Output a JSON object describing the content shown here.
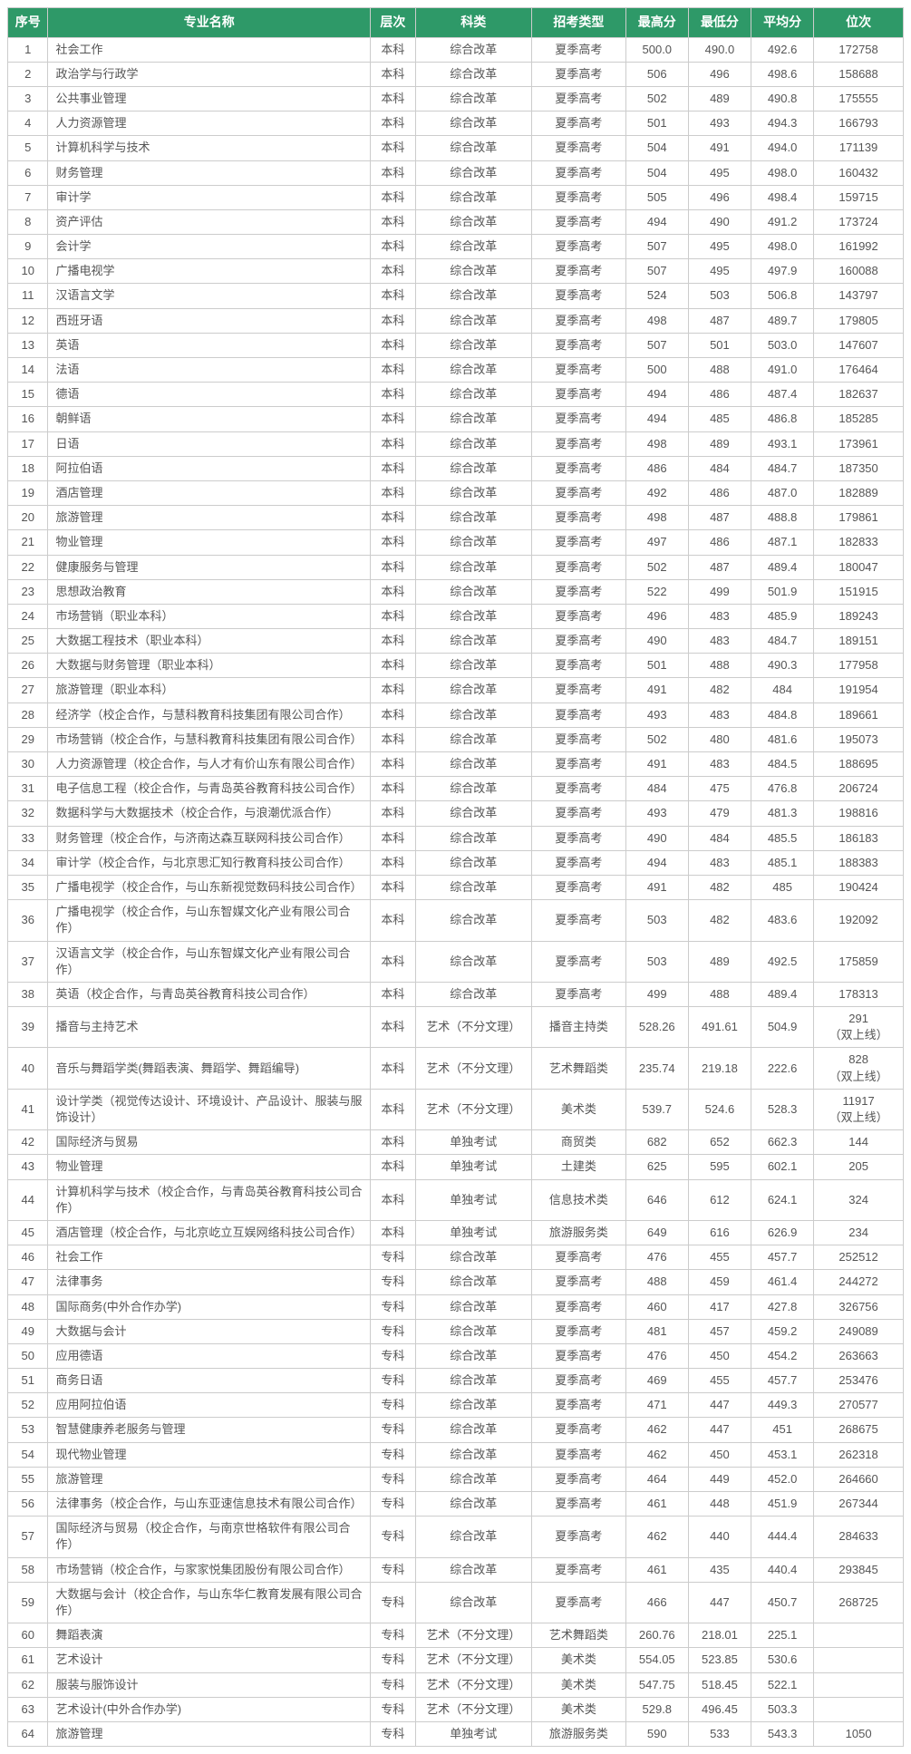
{
  "header_bg": "#2e9968",
  "header_fg": "#ffffff",
  "border_color": "#cccccc",
  "text_color": "#555555",
  "columns": [
    "序号",
    "专业名称",
    "层次",
    "科类",
    "招考类型",
    "最高分",
    "最低分",
    "平均分",
    "位次"
  ],
  "rows": [
    [
      "1",
      "社会工作",
      "本科",
      "综合改革",
      "夏季高考",
      "500.0",
      "490.0",
      "492.6",
      "172758"
    ],
    [
      "2",
      "政治学与行政学",
      "本科",
      "综合改革",
      "夏季高考",
      "506",
      "496",
      "498.6",
      "158688"
    ],
    [
      "3",
      "公共事业管理",
      "本科",
      "综合改革",
      "夏季高考",
      "502",
      "489",
      "490.8",
      "175555"
    ],
    [
      "4",
      "人力资源管理",
      "本科",
      "综合改革",
      "夏季高考",
      "501",
      "493",
      "494.3",
      "166793"
    ],
    [
      "5",
      "计算机科学与技术",
      "本科",
      "综合改革",
      "夏季高考",
      "504",
      "491",
      "494.0",
      "171139"
    ],
    [
      "6",
      "财务管理",
      "本科",
      "综合改革",
      "夏季高考",
      "504",
      "495",
      "498.0",
      "160432"
    ],
    [
      "7",
      "审计学",
      "本科",
      "综合改革",
      "夏季高考",
      "505",
      "496",
      "498.4",
      "159715"
    ],
    [
      "8",
      "资产评估",
      "本科",
      "综合改革",
      "夏季高考",
      "494",
      "490",
      "491.2",
      "173724"
    ],
    [
      "9",
      "会计学",
      "本科",
      "综合改革",
      "夏季高考",
      "507",
      "495",
      "498.0",
      "161992"
    ],
    [
      "10",
      "广播电视学",
      "本科",
      "综合改革",
      "夏季高考",
      "507",
      "495",
      "497.9",
      "160088"
    ],
    [
      "11",
      "汉语言文学",
      "本科",
      "综合改革",
      "夏季高考",
      "524",
      "503",
      "506.8",
      "143797"
    ],
    [
      "12",
      "西班牙语",
      "本科",
      "综合改革",
      "夏季高考",
      "498",
      "487",
      "489.7",
      "179805"
    ],
    [
      "13",
      "英语",
      "本科",
      "综合改革",
      "夏季高考",
      "507",
      "501",
      "503.0",
      "147607"
    ],
    [
      "14",
      "法语",
      "本科",
      "综合改革",
      "夏季高考",
      "500",
      "488",
      "491.0",
      "176464"
    ],
    [
      "15",
      "德语",
      "本科",
      "综合改革",
      "夏季高考",
      "494",
      "486",
      "487.4",
      "182637"
    ],
    [
      "16",
      "朝鲜语",
      "本科",
      "综合改革",
      "夏季高考",
      "494",
      "485",
      "486.8",
      "185285"
    ],
    [
      "17",
      "日语",
      "本科",
      "综合改革",
      "夏季高考",
      "498",
      "489",
      "493.1",
      "173961"
    ],
    [
      "18",
      "阿拉伯语",
      "本科",
      "综合改革",
      "夏季高考",
      "486",
      "484",
      "484.7",
      "187350"
    ],
    [
      "19",
      "酒店管理",
      "本科",
      "综合改革",
      "夏季高考",
      "492",
      "486",
      "487.0",
      "182889"
    ],
    [
      "20",
      "旅游管理",
      "本科",
      "综合改革",
      "夏季高考",
      "498",
      "487",
      "488.8",
      "179861"
    ],
    [
      "21",
      "物业管理",
      "本科",
      "综合改革",
      "夏季高考",
      "497",
      "486",
      "487.1",
      "182833"
    ],
    [
      "22",
      "健康服务与管理",
      "本科",
      "综合改革",
      "夏季高考",
      "502",
      "487",
      "489.4",
      "180047"
    ],
    [
      "23",
      "思想政治教育",
      "本科",
      "综合改革",
      "夏季高考",
      "522",
      "499",
      "501.9",
      "151915"
    ],
    [
      "24",
      "市场营销（职业本科）",
      "本科",
      "综合改革",
      "夏季高考",
      "496",
      "483",
      "485.9",
      "189243"
    ],
    [
      "25",
      "大数据工程技术（职业本科）",
      "本科",
      "综合改革",
      "夏季高考",
      "490",
      "483",
      "484.7",
      "189151"
    ],
    [
      "26",
      "大数据与财务管理（职业本科）",
      "本科",
      "综合改革",
      "夏季高考",
      "501",
      "488",
      "490.3",
      "177958"
    ],
    [
      "27",
      "旅游管理（职业本科）",
      "本科",
      "综合改革",
      "夏季高考",
      "491",
      "482",
      "484",
      "191954"
    ],
    [
      "28",
      "经济学（校企合作，与慧科教育科技集团有限公司合作）",
      "本科",
      "综合改革",
      "夏季高考",
      "493",
      "483",
      "484.8",
      "189661"
    ],
    [
      "29",
      "市场营销（校企合作，与慧科教育科技集团有限公司合作）",
      "本科",
      "综合改革",
      "夏季高考",
      "502",
      "480",
      "481.6",
      "195073"
    ],
    [
      "30",
      "人力资源管理（校企合作，与人才有价山东有限公司合作）",
      "本科",
      "综合改革",
      "夏季高考",
      "491",
      "483",
      "484.5",
      "188695"
    ],
    [
      "31",
      "电子信息工程（校企合作，与青岛英谷教育科技公司合作）",
      "本科",
      "综合改革",
      "夏季高考",
      "484",
      "475",
      "476.8",
      "206724"
    ],
    [
      "32",
      "数据科学与大数据技术（校企合作，与浪潮优派合作）",
      "本科",
      "综合改革",
      "夏季高考",
      "493",
      "479",
      "481.3",
      "198816"
    ],
    [
      "33",
      "财务管理（校企合作，与济南达森互联网科技公司合作）",
      "本科",
      "综合改革",
      "夏季高考",
      "490",
      "484",
      "485.5",
      "186183"
    ],
    [
      "34",
      "审计学（校企合作，与北京思汇知行教育科技公司合作）",
      "本科",
      "综合改革",
      "夏季高考",
      "494",
      "483",
      "485.1",
      "188383"
    ],
    [
      "35",
      "广播电视学（校企合作，与山东新视觉数码科技公司合作）",
      "本科",
      "综合改革",
      "夏季高考",
      "491",
      "482",
      "485",
      "190424"
    ],
    [
      "36",
      "广播电视学（校企合作，与山东智媒文化产业有限公司合作）",
      "本科",
      "综合改革",
      "夏季高考",
      "503",
      "482",
      "483.6",
      "192092"
    ],
    [
      "37",
      "汉语言文学（校企合作，与山东智媒文化产业有限公司合作）",
      "本科",
      "综合改革",
      "夏季高考",
      "503",
      "489",
      "492.5",
      "175859"
    ],
    [
      "38",
      "英语（校企合作，与青岛英谷教育科技公司合作）",
      "本科",
      "综合改革",
      "夏季高考",
      "499",
      "488",
      "489.4",
      "178313"
    ],
    [
      "39",
      "播音与主持艺术",
      "本科",
      "艺术（不分文理）",
      "播音主持类",
      "528.26",
      "491.61",
      "504.9",
      "291\n（双上线）"
    ],
    [
      "40",
      "音乐与舞蹈学类(舞蹈表演、舞蹈学、舞蹈编导)",
      "本科",
      "艺术（不分文理）",
      "艺术舞蹈类",
      "235.74",
      "219.18",
      "222.6",
      "828\n（双上线）"
    ],
    [
      "41",
      "设计学类（视觉传达设计、环境设计、产品设计、服装与服饰设计）",
      "本科",
      "艺术（不分文理）",
      "美术类",
      "539.7",
      "524.6",
      "528.3",
      "11917\n（双上线）"
    ],
    [
      "42",
      "国际经济与贸易",
      "本科",
      "单独考试",
      "商贸类",
      "682",
      "652",
      "662.3",
      "144"
    ],
    [
      "43",
      "物业管理",
      "本科",
      "单独考试",
      "土建类",
      "625",
      "595",
      "602.1",
      "205"
    ],
    [
      "44",
      "计算机科学与技术（校企合作，与青岛英谷教育科技公司合作）",
      "本科",
      "单独考试",
      "信息技术类",
      "646",
      "612",
      "624.1",
      "324"
    ],
    [
      "45",
      "酒店管理（校企合作，与北京屹立互娱网络科技公司合作）",
      "本科",
      "单独考试",
      "旅游服务类",
      "649",
      "616",
      "626.9",
      "234"
    ],
    [
      "46",
      "社会工作",
      "专科",
      "综合改革",
      "夏季高考",
      "476",
      "455",
      "457.7",
      "252512"
    ],
    [
      "47",
      "法律事务",
      "专科",
      "综合改革",
      "夏季高考",
      "488",
      "459",
      "461.4",
      "244272"
    ],
    [
      "48",
      "国际商务(中外合作办学)",
      "专科",
      "综合改革",
      "夏季高考",
      "460",
      "417",
      "427.8",
      "326756"
    ],
    [
      "49",
      "大数据与会计",
      "专科",
      "综合改革",
      "夏季高考",
      "481",
      "457",
      "459.2",
      "249089"
    ],
    [
      "50",
      "应用德语",
      "专科",
      "综合改革",
      "夏季高考",
      "476",
      "450",
      "454.2",
      "263663"
    ],
    [
      "51",
      "商务日语",
      "专科",
      "综合改革",
      "夏季高考",
      "469",
      "455",
      "457.7",
      "253476"
    ],
    [
      "52",
      "应用阿拉伯语",
      "专科",
      "综合改革",
      "夏季高考",
      "471",
      "447",
      "449.3",
      "270577"
    ],
    [
      "53",
      "智慧健康养老服务与管理",
      "专科",
      "综合改革",
      "夏季高考",
      "462",
      "447",
      "451",
      "268675"
    ],
    [
      "54",
      "现代物业管理",
      "专科",
      "综合改革",
      "夏季高考",
      "462",
      "450",
      "453.1",
      "262318"
    ],
    [
      "55",
      "旅游管理",
      "专科",
      "综合改革",
      "夏季高考",
      "464",
      "449",
      "452.0",
      "264660"
    ],
    [
      "56",
      "法律事务（校企合作，与山东亚速信息技术有限公司合作）",
      "专科",
      "综合改革",
      "夏季高考",
      "461",
      "448",
      "451.9",
      "267344"
    ],
    [
      "57",
      "国际经济与贸易（校企合作，与南京世格软件有限公司合作）",
      "专科",
      "综合改革",
      "夏季高考",
      "462",
      "440",
      "444.4",
      "284633"
    ],
    [
      "58",
      "市场营销（校企合作，与家家悦集团股份有限公司合作）",
      "专科",
      "综合改革",
      "夏季高考",
      "461",
      "435",
      "440.4",
      "293845"
    ],
    [
      "59",
      "大数据与会计（校企合作，与山东华仁教育发展有限公司合作）",
      "专科",
      "综合改革",
      "夏季高考",
      "466",
      "447",
      "450.7",
      "268725"
    ],
    [
      "60",
      "舞蹈表演",
      "专科",
      "艺术（不分文理）",
      "艺术舞蹈类",
      "260.76",
      "218.01",
      "225.1",
      ""
    ],
    [
      "61",
      "艺术设计",
      "专科",
      "艺术（不分文理）",
      "美术类",
      "554.05",
      "523.85",
      "530.6",
      ""
    ],
    [
      "62",
      "服装与服饰设计",
      "专科",
      "艺术（不分文理）",
      "美术类",
      "547.75",
      "518.45",
      "522.1",
      ""
    ],
    [
      "63",
      "艺术设计(中外合作办学)",
      "专科",
      "艺术（不分文理）",
      "美术类",
      "529.8",
      "496.45",
      "503.3",
      ""
    ],
    [
      "64",
      "旅游管理",
      "专科",
      "单独考试",
      "旅游服务类",
      "590",
      "533",
      "543.3",
      "1050"
    ]
  ]
}
